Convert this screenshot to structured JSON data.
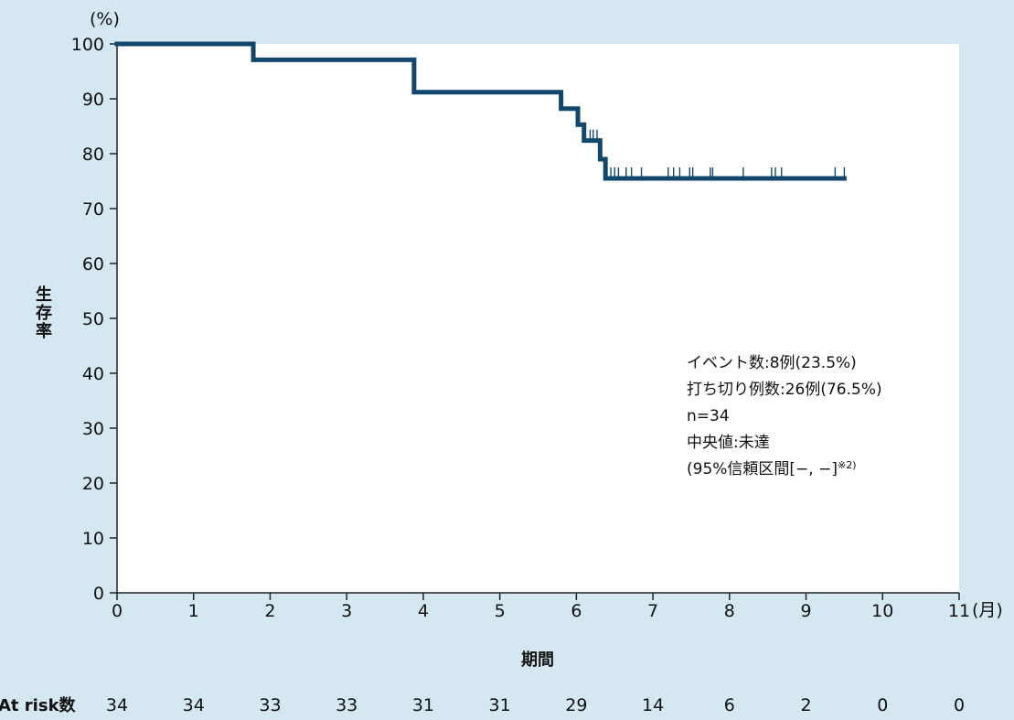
{
  "chart_data": {
    "type": "line",
    "subtype": "kaplan-meier",
    "title": "",
    "xlabel": "期間",
    "xunit": "(月)",
    "ylabel": "生存率",
    "yunit": "(%)",
    "xlim": [
      0,
      11
    ],
    "ylim": [
      0,
      100
    ],
    "xticks": [
      0,
      1,
      2,
      3,
      4,
      5,
      6,
      7,
      8,
      9,
      10,
      11
    ],
    "yticks": [
      0,
      10,
      20,
      30,
      40,
      50,
      60,
      70,
      80,
      90,
      100
    ],
    "grid": false,
    "colors": {
      "curve": "#12476b",
      "plot_background": "#ffffff",
      "page_background": "#d5e7f1"
    },
    "series": [
      {
        "steps": [
          {
            "x": 0,
            "y": 100
          },
          {
            "x": 1.78,
            "y": 97.1
          },
          {
            "x": 3.88,
            "y": 91.2
          },
          {
            "x": 5.8,
            "y": 88.2
          },
          {
            "x": 6.02,
            "y": 85.3
          },
          {
            "x": 6.1,
            "y": 82.4
          },
          {
            "x": 6.31,
            "y": 79.0
          },
          {
            "x": 6.38,
            "y": 75.5
          }
        ],
        "end_x": 9.5,
        "censored": [
          {
            "x": 6.18,
            "y": 82.4
          },
          {
            "x": 6.22,
            "y": 82.4
          },
          {
            "x": 6.27,
            "y": 82.4
          },
          {
            "x": 6.45,
            "y": 75.5
          },
          {
            "x": 6.5,
            "y": 75.5
          },
          {
            "x": 6.55,
            "y": 75.5
          },
          {
            "x": 6.65,
            "y": 75.5
          },
          {
            "x": 6.72,
            "y": 75.5
          },
          {
            "x": 6.85,
            "y": 75.5
          },
          {
            "x": 7.2,
            "y": 75.5
          },
          {
            "x": 7.27,
            "y": 75.5
          },
          {
            "x": 7.35,
            "y": 75.5
          },
          {
            "x": 7.48,
            "y": 75.5
          },
          {
            "x": 7.52,
            "y": 75.5
          },
          {
            "x": 7.75,
            "y": 75.5
          },
          {
            "x": 7.78,
            "y": 75.5
          },
          {
            "x": 8.18,
            "y": 75.5
          },
          {
            "x": 8.55,
            "y": 75.5
          },
          {
            "x": 8.6,
            "y": 75.5
          },
          {
            "x": 8.68,
            "y": 75.5
          },
          {
            "x": 9.38,
            "y": 75.5
          },
          {
            "x": 9.5,
            "y": 75.5
          }
        ]
      }
    ],
    "annotations": [
      "イベント数:8例(23.5%)",
      "打ち切り例数:26例(76.5%)",
      "n=34",
      "中央値:未達",
      "(95%信頼区間[−, −]",
      "※2)"
    ],
    "at_risk": {
      "label": "At risk数",
      "values": [
        "34",
        "34",
        "33",
        "33",
        "31",
        "31",
        "29",
        "14",
        "6",
        "2",
        "0",
        "0"
      ]
    }
  }
}
